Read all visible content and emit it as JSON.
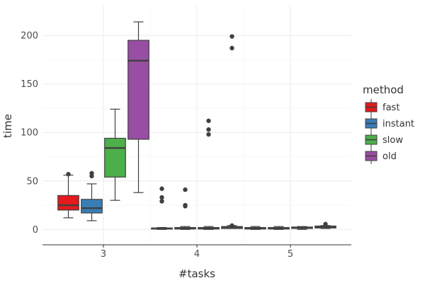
{
  "chart_data": {
    "type": "boxplot",
    "xlabel": "#tasks",
    "ylabel": "time",
    "ylim": [
      -10,
      222
    ],
    "yticks": [
      0,
      50,
      100,
      150,
      200
    ],
    "categories": [
      "3",
      "4",
      "5"
    ],
    "grid": true,
    "legend": {
      "title": "method",
      "placement": "right"
    },
    "series": [
      {
        "name": "fast",
        "color": "#E41A1C",
        "boxes": [
          {
            "x": "3",
            "whisker_low": 12,
            "q1": 20,
            "median": 25,
            "q3": 35,
            "whisker_high": 56,
            "outliers": [
              57
            ]
          },
          {
            "x": "4",
            "whisker_low": 0,
            "q1": 0.5,
            "median": 1,
            "q3": 1.5,
            "whisker_high": 2,
            "outliers": [
              29,
              33,
              42
            ]
          },
          {
            "x": "5",
            "whisker_low": 0,
            "q1": 0.5,
            "median": 1,
            "q3": 2,
            "whisker_high": 3,
            "outliers": []
          }
        ]
      },
      {
        "name": "instant",
        "color": "#377EB8",
        "boxes": [
          {
            "x": "3",
            "whisker_low": 9,
            "q1": 17,
            "median": 22,
            "q3": 31,
            "whisker_high": 47,
            "outliers": [
              55,
              58
            ]
          },
          {
            "x": "4",
            "whisker_low": 0,
            "q1": 0.5,
            "median": 1,
            "q3": 2,
            "whisker_high": 3,
            "outliers": [
              24,
              25,
              41
            ]
          },
          {
            "x": "5",
            "whisker_low": 0,
            "q1": 0.5,
            "median": 1,
            "q3": 2,
            "whisker_high": 3,
            "outliers": []
          }
        ]
      },
      {
        "name": "slow",
        "color": "#4DAF4A",
        "boxes": [
          {
            "x": "3",
            "whisker_low": 30,
            "q1": 54,
            "median": 84,
            "q3": 94,
            "whisker_high": 124,
            "outliers": []
          },
          {
            "x": "4",
            "whisker_low": 0,
            "q1": 0.5,
            "median": 1,
            "q3": 2,
            "whisker_high": 3,
            "outliers": [
              98,
              103,
              112
            ]
          },
          {
            "x": "5",
            "whisker_low": 0,
            "q1": 1,
            "median": 1.5,
            "q3": 2.5,
            "whisker_high": 3,
            "outliers": []
          }
        ]
      },
      {
        "name": "old",
        "color": "#984EA3",
        "boxes": [
          {
            "x": "3",
            "whisker_low": 38,
            "q1": 93,
            "median": 174,
            "q3": 195,
            "whisker_high": 214,
            "outliers": []
          },
          {
            "x": "4",
            "whisker_low": 1,
            "q1": 1,
            "median": 2,
            "q3": 3,
            "whisker_high": 4,
            "outliers": [
              4,
              187,
              199
            ]
          },
          {
            "x": "5",
            "whisker_low": 1,
            "q1": 1.5,
            "median": 2.5,
            "q3": 3.5,
            "whisker_high": 4,
            "outliers": [
              5.5
            ]
          }
        ]
      }
    ]
  }
}
